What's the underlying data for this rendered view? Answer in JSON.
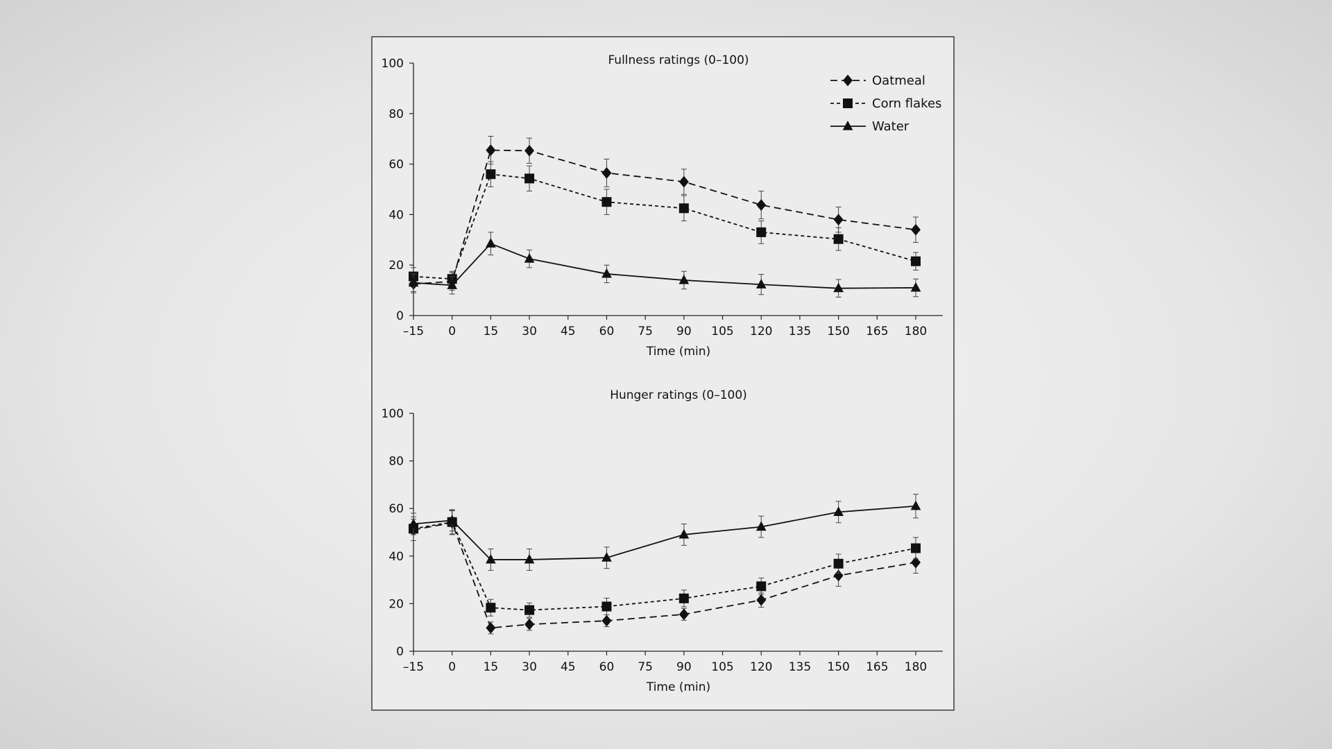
{
  "chart_data": [
    {
      "type": "line",
      "title": "Fullness ratings (0–100)",
      "xlabel": "Time (min)",
      "ylabel": "",
      "x": [
        -15,
        0,
        15,
        30,
        60,
        90,
        120,
        150,
        180
      ],
      "xticks": [
        "–15",
        "0",
        "15",
        "30",
        "45",
        "60",
        "75",
        "90",
        "105",
        "120",
        "135",
        "150",
        "165",
        "180"
      ],
      "yticks": [
        "0",
        "20",
        "40",
        "60",
        "80",
        "100"
      ],
      "xlim": [
        -15,
        195
      ],
      "ylim": [
        0,
        100
      ],
      "grid": false,
      "legend": "top-right",
      "series": [
        {
          "name": "Oatmeal",
          "marker": "diamond",
          "line": "long-dash",
          "values": [
            12.5,
            13.5,
            65.5,
            65.3,
            56.5,
            53,
            43.8,
            38,
            34
          ],
          "error": [
            3.5,
            3.5,
            5.5,
            5,
            5.5,
            5,
            5.5,
            5,
            5
          ]
        },
        {
          "name": "Corn flakes",
          "marker": "square",
          "line": "short-dash",
          "values": [
            15.5,
            14.5,
            56,
            54.3,
            45,
            42.5,
            33,
            30.3,
            21.5
          ],
          "error": [
            3.5,
            3,
            5,
            5,
            5,
            5,
            4.5,
            4.5,
            3.5
          ]
        },
        {
          "name": "Water",
          "marker": "triangle",
          "line": "solid",
          "values": [
            13,
            12,
            28.5,
            22.5,
            16.5,
            14,
            12.3,
            10.8,
            11
          ],
          "error": [
            3.5,
            3.5,
            4.5,
            3.5,
            3.5,
            3.5,
            4,
            3.5,
            3.5
          ]
        }
      ]
    },
    {
      "type": "line",
      "title": "Hunger ratings (0–100)",
      "xlabel": "Time (min)",
      "ylabel": "",
      "x": [
        -15,
        0,
        15,
        30,
        60,
        90,
        120,
        150,
        180
      ],
      "xticks": [
        "–15",
        "0",
        "15",
        "30",
        "45",
        "60",
        "75",
        "90",
        "105",
        "120",
        "135",
        "150",
        "165",
        "180"
      ],
      "yticks": [
        "0",
        "20",
        "40",
        "60",
        "80",
        "100"
      ],
      "xlim": [
        -15,
        195
      ],
      "ylim": [
        0,
        100
      ],
      "grid": false,
      "series": [
        {
          "name": "Oatmeal",
          "marker": "diamond",
          "line": "long-dash",
          "values": [
            51,
            54,
            9.8,
            11.3,
            12.8,
            15.5,
            21.5,
            31.8,
            37.3
          ],
          "error": [
            4.5,
            5,
            2.5,
            2.5,
            2.5,
            2.5,
            3,
            4.5,
            4.5
          ]
        },
        {
          "name": "Corn flakes",
          "marker": "square",
          "line": "short-dash",
          "values": [
            51.5,
            54.3,
            18.3,
            17.3,
            18.8,
            22.2,
            27.3,
            36.8,
            43.3
          ],
          "error": [
            5,
            5,
            3.5,
            3,
            3.5,
            3.5,
            3.5,
            4,
            4.5
          ]
        },
        {
          "name": "Water",
          "marker": "triangle",
          "line": "solid",
          "values": [
            53.5,
            55,
            38.5,
            38.5,
            39.3,
            49,
            52.3,
            58.5,
            61
          ],
          "error": [
            4.5,
            4.5,
            4.5,
            4.5,
            4.5,
            4.5,
            4.5,
            4.5,
            5
          ]
        }
      ]
    }
  ]
}
